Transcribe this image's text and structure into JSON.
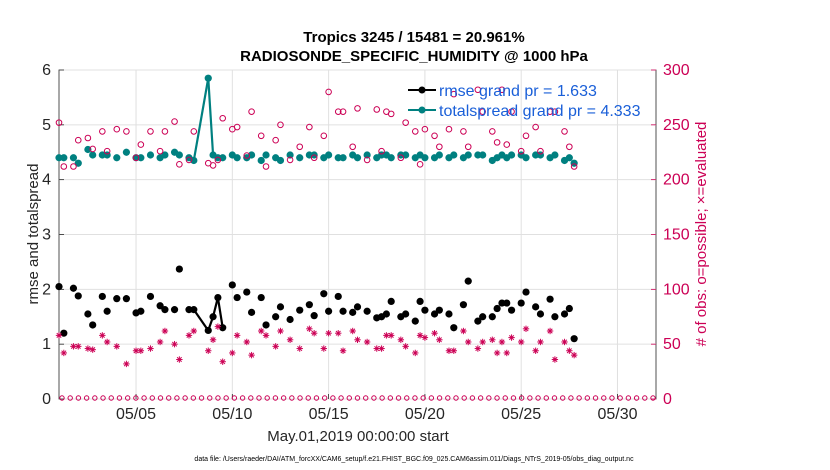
{
  "chart_data": {
    "type": "line",
    "title_line1": "Tropics 3245 / 15481 = 20.961%",
    "title_line2": "RADIOSONDE_SPECIFIC_HUMIDITY @ 1000 hPa",
    "xlabel": "May.01,2019 00:00:00 start",
    "ylabel_left": "rmse and totalspread",
    "ylabel_right": "# of obs: o=possible; ×=evaluated",
    "xlim": [
      1,
      32
    ],
    "ylim_left": [
      0,
      6
    ],
    "ylim_right": [
      0,
      300
    ],
    "x_ticks": [
      {
        "x": 5,
        "label": "05/05"
      },
      {
        "x": 10,
        "label": "05/10"
      },
      {
        "x": 15,
        "label": "05/15"
      },
      {
        "x": 20,
        "label": "05/20"
      },
      {
        "x": 25,
        "label": "05/25"
      },
      {
        "x": 30,
        "label": "05/30"
      }
    ],
    "y_ticks_left": [
      "0",
      "1",
      "2",
      "3",
      "4",
      "5",
      "6"
    ],
    "y_ticks_right": [
      "0",
      "50",
      "100",
      "150",
      "200",
      "250",
      "300"
    ],
    "legend": [
      {
        "name": "rmse grand pr = 1.633",
        "color": "#000000"
      },
      {
        "name": "totalspread grand pr = 4.333",
        "color": "#008080"
      }
    ],
    "footnote": "data file: /Users/raeder/DAI/ATM_forcXX/CAM6_setup/f.e21.FHIST_BGC.f09_025.CAM6assim.011/Diags_NTrS_2019-05/obs_diag_output.nc",
    "series": [
      {
        "name": "rmse",
        "axis": "left",
        "color": "#000000",
        "points": [
          [
            1.0,
            2.05
          ],
          [
            1.25,
            1.2
          ],
          [
            1.75,
            2.02
          ],
          [
            2.0,
            1.88
          ],
          [
            2.5,
            1.55
          ],
          [
            2.75,
            1.35
          ],
          [
            3.25,
            1.87
          ],
          [
            3.5,
            1.6
          ],
          [
            4.0,
            1.83
          ],
          [
            4.5,
            1.83
          ],
          [
            5.0,
            1.57
          ],
          [
            5.25,
            1.6
          ],
          [
            5.75,
            1.87
          ],
          [
            6.25,
            1.7
          ],
          [
            6.5,
            1.63
          ],
          [
            7.0,
            1.63
          ],
          [
            7.25,
            2.37
          ],
          [
            7.75,
            1.63
          ],
          [
            8.0,
            1.63
          ],
          [
            8.75,
            1.25
          ],
          [
            9.0,
            1.5
          ],
          [
            9.25,
            1.85
          ],
          [
            9.5,
            1.3
          ],
          [
            10.0,
            2.08
          ],
          [
            10.25,
            1.85
          ],
          [
            10.75,
            1.95
          ],
          [
            11.0,
            1.58
          ],
          [
            11.5,
            1.85
          ],
          [
            11.75,
            1.35
          ],
          [
            12.25,
            1.5
          ],
          [
            12.5,
            1.68
          ],
          [
            13.0,
            1.45
          ],
          [
            13.5,
            1.62
          ],
          [
            14.0,
            1.72
          ],
          [
            14.25,
            1.52
          ],
          [
            14.75,
            1.92
          ],
          [
            15.0,
            1.6
          ],
          [
            15.5,
            1.87
          ],
          [
            15.75,
            1.6
          ],
          [
            16.25,
            1.58
          ],
          [
            16.5,
            1.68
          ],
          [
            17.0,
            1.6
          ],
          [
            17.5,
            1.48
          ],
          [
            17.75,
            1.5
          ],
          [
            18.0,
            1.55
          ],
          [
            18.25,
            1.78
          ],
          [
            18.75,
            1.5
          ],
          [
            19.0,
            1.55
          ],
          [
            19.5,
            1.42
          ],
          [
            19.75,
            1.78
          ],
          [
            20.0,
            1.62
          ],
          [
            20.5,
            1.55
          ],
          [
            20.75,
            1.62
          ],
          [
            21.25,
            1.55
          ],
          [
            21.5,
            1.3
          ],
          [
            22.0,
            1.72
          ],
          [
            22.25,
            2.15
          ],
          [
            22.75,
            1.42
          ],
          [
            23.0,
            1.5
          ],
          [
            23.5,
            1.5
          ],
          [
            23.75,
            1.65
          ],
          [
            24.0,
            1.75
          ],
          [
            24.25,
            1.75
          ],
          [
            24.5,
            1.62
          ],
          [
            25.0,
            1.75
          ],
          [
            25.25,
            1.95
          ],
          [
            25.75,
            1.68
          ],
          [
            26.0,
            1.55
          ],
          [
            26.5,
            1.82
          ],
          [
            26.75,
            1.5
          ],
          [
            27.25,
            1.55
          ],
          [
            27.5,
            1.65
          ],
          [
            27.75,
            1.1
          ]
        ]
      },
      {
        "name": "totalspread",
        "axis": "left",
        "color": "#008080",
        "points": [
          [
            1.0,
            4.4
          ],
          [
            1.25,
            4.4
          ],
          [
            1.75,
            4.4
          ],
          [
            2.0,
            4.3
          ],
          [
            2.5,
            4.55
          ],
          [
            2.75,
            4.45
          ],
          [
            3.25,
            4.45
          ],
          [
            3.5,
            4.45
          ],
          [
            4.0,
            4.4
          ],
          [
            4.5,
            4.5
          ],
          [
            5.0,
            4.4
          ],
          [
            5.25,
            4.4
          ],
          [
            5.75,
            4.45
          ],
          [
            6.25,
            4.4
          ],
          [
            6.5,
            4.45
          ],
          [
            7.0,
            4.5
          ],
          [
            7.25,
            4.45
          ],
          [
            7.75,
            4.4
          ],
          [
            8.0,
            4.35
          ],
          [
            8.75,
            5.85
          ],
          [
            9.0,
            4.45
          ],
          [
            9.25,
            4.4
          ],
          [
            9.5,
            4.4
          ],
          [
            10.0,
            4.45
          ],
          [
            10.25,
            4.4
          ],
          [
            10.75,
            4.4
          ],
          [
            11.0,
            4.45
          ],
          [
            11.5,
            4.35
          ],
          [
            11.75,
            4.45
          ],
          [
            12.25,
            4.4
          ],
          [
            12.5,
            4.35
          ],
          [
            13.0,
            4.45
          ],
          [
            13.5,
            4.4
          ],
          [
            14.0,
            4.45
          ],
          [
            14.25,
            4.45
          ],
          [
            14.75,
            4.4
          ],
          [
            15.0,
            4.45
          ],
          [
            15.5,
            4.4
          ],
          [
            15.75,
            4.4
          ],
          [
            16.25,
            4.45
          ],
          [
            16.5,
            4.4
          ],
          [
            17.0,
            4.45
          ],
          [
            17.5,
            4.4
          ],
          [
            17.75,
            4.45
          ],
          [
            18.0,
            4.45
          ],
          [
            18.25,
            4.4
          ],
          [
            18.75,
            4.45
          ],
          [
            19.0,
            4.45
          ],
          [
            19.5,
            4.4
          ],
          [
            19.75,
            4.45
          ],
          [
            20.0,
            4.4
          ],
          [
            20.5,
            4.4
          ],
          [
            20.75,
            4.45
          ],
          [
            21.25,
            4.4
          ],
          [
            21.5,
            4.45
          ],
          [
            22.0,
            4.4
          ],
          [
            22.25,
            4.45
          ],
          [
            22.75,
            4.45
          ],
          [
            23.0,
            4.45
          ],
          [
            23.5,
            4.35
          ],
          [
            23.75,
            4.4
          ],
          [
            24.0,
            4.45
          ],
          [
            24.25,
            4.4
          ],
          [
            24.5,
            4.45
          ],
          [
            25.0,
            4.45
          ],
          [
            25.25,
            4.4
          ],
          [
            25.75,
            4.45
          ],
          [
            26.0,
            4.45
          ],
          [
            26.5,
            4.4
          ],
          [
            26.75,
            4.45
          ],
          [
            27.25,
            4.35
          ],
          [
            27.5,
            4.4
          ],
          [
            27.75,
            4.3
          ]
        ]
      },
      {
        "name": "obs possible",
        "axis": "right",
        "color": "#cc0055",
        "marker": "circle",
        "points": [
          [
            1.0,
            252
          ],
          [
            1.25,
            212
          ],
          [
            1.75,
            212
          ],
          [
            2.0,
            236
          ],
          [
            2.5,
            238
          ],
          [
            2.75,
            228
          ],
          [
            3.25,
            244
          ],
          [
            3.5,
            226
          ],
          [
            4.0,
            246
          ],
          [
            4.5,
            244
          ],
          [
            5.0,
            220
          ],
          [
            5.25,
            232
          ],
          [
            5.75,
            244
          ],
          [
            6.25,
            226
          ],
          [
            6.5,
            244
          ],
          [
            7.0,
            253
          ],
          [
            7.25,
            214
          ],
          [
            7.75,
            218
          ],
          [
            8.0,
            244
          ],
          [
            8.75,
            215
          ],
          [
            9.0,
            213
          ],
          [
            9.25,
            218
          ],
          [
            9.5,
            256
          ],
          [
            10.0,
            246
          ],
          [
            10.25,
            248
          ],
          [
            10.75,
            222
          ],
          [
            11.0,
            262
          ],
          [
            11.5,
            240
          ],
          [
            11.75,
            212
          ],
          [
            12.25,
            236
          ],
          [
            12.5,
            250
          ],
          [
            13.0,
            218
          ],
          [
            13.5,
            230
          ],
          [
            14.0,
            248
          ],
          [
            14.25,
            220
          ],
          [
            14.75,
            240
          ],
          [
            15.0,
            280
          ],
          [
            15.5,
            262
          ],
          [
            15.75,
            262
          ],
          [
            16.25,
            230
          ],
          [
            16.5,
            265
          ],
          [
            17.0,
            218
          ],
          [
            17.5,
            264
          ],
          [
            17.75,
            226
          ],
          [
            18.0,
            262
          ],
          [
            18.25,
            260
          ],
          [
            18.75,
            220
          ],
          [
            19.0,
            252
          ],
          [
            19.5,
            244
          ],
          [
            19.75,
            214
          ],
          [
            20.0,
            246
          ],
          [
            20.5,
            240
          ],
          [
            20.75,
            230
          ],
          [
            21.25,
            246
          ],
          [
            21.5,
            278
          ],
          [
            22.0,
            244
          ],
          [
            22.25,
            230
          ],
          [
            22.75,
            282
          ],
          [
            23.0,
            262
          ],
          [
            23.5,
            244
          ],
          [
            23.75,
            234
          ],
          [
            24.0,
            282
          ],
          [
            24.25,
            232
          ],
          [
            24.5,
            262
          ],
          [
            25.0,
            226
          ],
          [
            25.25,
            240
          ],
          [
            25.75,
            248
          ],
          [
            26.0,
            226
          ],
          [
            26.5,
            262
          ],
          [
            26.75,
            262
          ],
          [
            27.25,
            244
          ],
          [
            27.5,
            230
          ],
          [
            27.75,
            212
          ]
        ]
      },
      {
        "name": "obs evaluated",
        "axis": "right",
        "color": "#cc0055",
        "marker": "asterisk",
        "points": [
          [
            1.0,
            58
          ],
          [
            1.25,
            42
          ],
          [
            1.75,
            48
          ],
          [
            2.0,
            48
          ],
          [
            2.5,
            46
          ],
          [
            2.75,
            45
          ],
          [
            3.25,
            58
          ],
          [
            3.5,
            52
          ],
          [
            4.0,
            48
          ],
          [
            4.5,
            32
          ],
          [
            5.0,
            44
          ],
          [
            5.25,
            44
          ],
          [
            5.75,
            46
          ],
          [
            6.25,
            52
          ],
          [
            6.5,
            62
          ],
          [
            7.0,
            50
          ],
          [
            7.25,
            36
          ],
          [
            7.75,
            58
          ],
          [
            8.0,
            62
          ],
          [
            8.75,
            44
          ],
          [
            9.0,
            54
          ],
          [
            9.25,
            66
          ],
          [
            9.5,
            34
          ],
          [
            10.0,
            42
          ],
          [
            10.25,
            58
          ],
          [
            10.75,
            52
          ],
          [
            11.0,
            40
          ],
          [
            11.5,
            62
          ],
          [
            11.75,
            58
          ],
          [
            12.25,
            48
          ],
          [
            12.5,
            62
          ],
          [
            13.0,
            54
          ],
          [
            13.5,
            46
          ],
          [
            14.0,
            64
          ],
          [
            14.25,
            60
          ],
          [
            14.75,
            46
          ],
          [
            15.0,
            60
          ],
          [
            15.5,
            60
          ],
          [
            15.75,
            44
          ],
          [
            16.25,
            62
          ],
          [
            16.5,
            54
          ],
          [
            17.0,
            52
          ],
          [
            17.5,
            46
          ],
          [
            17.75,
            46
          ],
          [
            18.0,
            58
          ],
          [
            18.25,
            58
          ],
          [
            18.75,
            54
          ],
          [
            19.0,
            48
          ],
          [
            19.5,
            42
          ],
          [
            19.75,
            58
          ],
          [
            20.0,
            56
          ],
          [
            20.5,
            60
          ],
          [
            20.75,
            54
          ],
          [
            21.25,
            44
          ],
          [
            21.5,
            44
          ],
          [
            22.0,
            62
          ],
          [
            22.25,
            52
          ],
          [
            22.75,
            46
          ],
          [
            23.0,
            52
          ],
          [
            23.5,
            54
          ],
          [
            23.75,
            42
          ],
          [
            24.0,
            52
          ],
          [
            24.25,
            42
          ],
          [
            24.5,
            56
          ],
          [
            25.0,
            52
          ],
          [
            25.25,
            64
          ],
          [
            25.75,
            44
          ],
          [
            26.0,
            52
          ],
          [
            26.5,
            62
          ],
          [
            26.75,
            36
          ],
          [
            27.25,
            52
          ],
          [
            27.5,
            44
          ],
          [
            27.75,
            40
          ]
        ]
      }
    ]
  }
}
